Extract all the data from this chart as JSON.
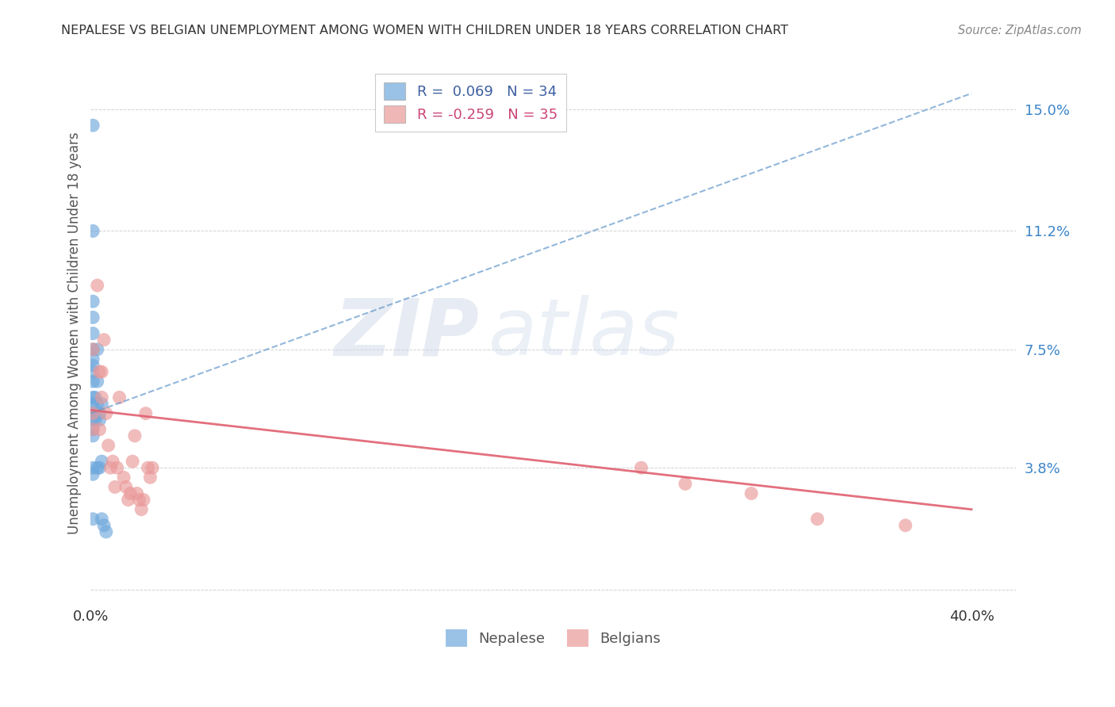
{
  "title": "NEPALESE VS BELGIAN UNEMPLOYMENT AMONG WOMEN WITH CHILDREN UNDER 18 YEARS CORRELATION CHART",
  "source": "Source: ZipAtlas.com",
  "ylabel": "Unemployment Among Women with Children Under 18 years",
  "xlim": [
    0.0,
    0.42
  ],
  "ylim": [
    -0.005,
    0.165
  ],
  "xtick_positions": [
    0.0,
    0.05,
    0.1,
    0.15,
    0.2,
    0.25,
    0.3,
    0.35,
    0.4
  ],
  "xticklabels": [
    "0.0%",
    "",
    "",
    "",
    "",
    "",
    "",
    "",
    "40.0%"
  ],
  "ytick_positions": [
    0.0,
    0.038,
    0.075,
    0.112,
    0.15
  ],
  "ytick_labels": [
    "",
    "3.8%",
    "7.5%",
    "11.2%",
    "15.0%"
  ],
  "legend_r_nepalese": " 0.069",
  "legend_n_nepalese": "34",
  "legend_r_belgians": "-0.259",
  "legend_n_belgians": "35",
  "nepalese_color": "#6fa8dc",
  "belgians_color": "#ea9999",
  "nepalese_line_color": "#6699cc",
  "belgians_line_color": "#e06070",
  "nepalese_x": [
    0.001,
    0.001,
    0.001,
    0.001,
    0.001,
    0.001,
    0.001,
    0.001,
    0.001,
    0.001,
    0.001,
    0.001,
    0.001,
    0.001,
    0.001,
    0.001,
    0.001,
    0.001,
    0.001,
    0.001,
    0.002,
    0.002,
    0.003,
    0.003,
    0.003,
    0.003,
    0.004,
    0.004,
    0.004,
    0.005,
    0.005,
    0.005,
    0.006,
    0.007
  ],
  "nepalese_y": [
    0.145,
    0.112,
    0.09,
    0.085,
    0.08,
    0.075,
    0.072,
    0.07,
    0.068,
    0.065,
    0.06,
    0.058,
    0.055,
    0.055,
    0.053,
    0.05,
    0.048,
    0.038,
    0.036,
    0.022,
    0.06,
    0.053,
    0.075,
    0.065,
    0.058,
    0.038,
    0.055,
    0.053,
    0.038,
    0.058,
    0.04,
    0.022,
    0.02,
    0.018
  ],
  "belgians_x": [
    0.001,
    0.001,
    0.001,
    0.003,
    0.004,
    0.004,
    0.005,
    0.005,
    0.006,
    0.007,
    0.008,
    0.009,
    0.01,
    0.011,
    0.012,
    0.013,
    0.015,
    0.016,
    0.017,
    0.018,
    0.019,
    0.02,
    0.021,
    0.022,
    0.023,
    0.024,
    0.025,
    0.026,
    0.027,
    0.028,
    0.25,
    0.27,
    0.3,
    0.33,
    0.37
  ],
  "belgians_y": [
    0.055,
    0.05,
    0.075,
    0.095,
    0.05,
    0.068,
    0.068,
    0.06,
    0.078,
    0.055,
    0.045,
    0.038,
    0.04,
    0.032,
    0.038,
    0.06,
    0.035,
    0.032,
    0.028,
    0.03,
    0.04,
    0.048,
    0.03,
    0.028,
    0.025,
    0.028,
    0.055,
    0.038,
    0.035,
    0.038,
    0.038,
    0.033,
    0.03,
    0.022,
    0.02
  ],
  "watermark_zip": "ZIP",
  "watermark_atlas": "atlas",
  "background_color": "#ffffff",
  "grid_color": "#cccccc",
  "ytick_color": "#3d85c8",
  "xtick_color": "#333333",
  "title_color": "#333333",
  "source_color": "#888888",
  "ylabel_color": "#555555"
}
